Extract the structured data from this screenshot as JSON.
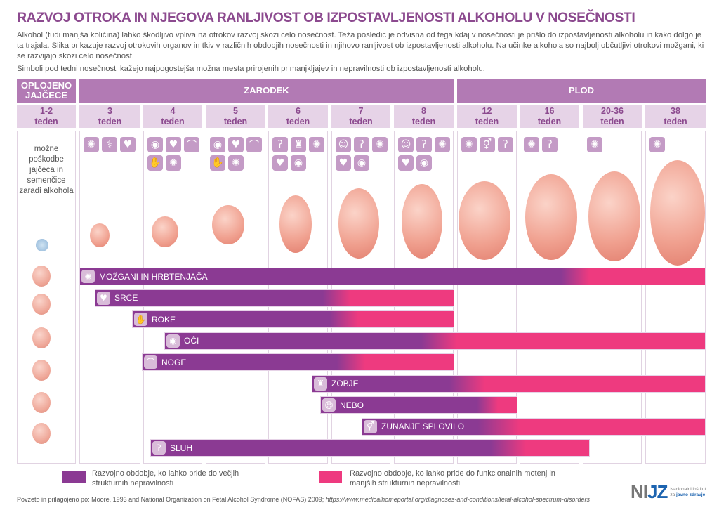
{
  "title": "RAZVOJ OTROKA IN NJEGOVA RANLJIVOST OB IZPOSTAVLJENOSTI ALKOHOLU V NOSEČNOSTI",
  "intro": "Alkohol (tudi manjša količina) lahko škodljivo vpliva na otrokov razvoj skozi celo nosečnost. Teža posledic je odvisna od tega kdaj v nosečnosti je prišlo do izpostavljenosti alkoholu in kako dolgo je ta trajala. Slika prikazuje razvoj otrokovih organov in tkiv v različnih obdobjih nosečnosti in njihovo ranljivost ob izpostavljenosti alkoholu. Na učinke alkohola so najbolj občutljivi otrokovi možgani, ki se razvijajo skozi celo nosečnost.",
  "symbols_note": "Simboli pod tedni nosečnosti kažejo najpogostejša možna mesta prirojenih primanjkljajev in nepravilnosti ob izpostavljenosti alkoholu.",
  "stages": {
    "egg": "OPLOJENO JAJČECE",
    "embryo": "ZARODEK",
    "fetus": "PLOD"
  },
  "week_unit": "teden",
  "weeks": [
    {
      "num": "1-2",
      "icons": []
    },
    {
      "num": "3",
      "icons": [
        "brain",
        "spine",
        "heart"
      ]
    },
    {
      "num": "4",
      "icons": [
        "eye",
        "heart",
        "leg",
        "hand",
        "brain"
      ]
    },
    {
      "num": "5",
      "icons": [
        "eye",
        "heart",
        "leg",
        "hand",
        "brain"
      ]
    },
    {
      "num": "6",
      "icons": [
        "ear",
        "tooth",
        "brain",
        "heart",
        "eye"
      ]
    },
    {
      "num": "7",
      "icons": [
        "palate",
        "ear",
        "brain",
        "heart",
        "eye"
      ]
    },
    {
      "num": "8",
      "icons": [
        "palate",
        "ear",
        "brain",
        "heart",
        "eye"
      ]
    },
    {
      "num": "12",
      "icons": [
        "brain",
        "genitals",
        "ear"
      ]
    },
    {
      "num": "16",
      "icons": [
        "brain",
        "ear"
      ]
    },
    {
      "num": "20-36",
      "icons": [
        "brain"
      ]
    },
    {
      "num": "38",
      "icons": [
        "brain"
      ]
    }
  ],
  "egg_note": "možne poškodbe jajčeca in semenčice zaradi alkohola",
  "organs": [
    {
      "label": "MOŽGANI IN HRBTENJAČA",
      "icon": "brain"
    },
    {
      "label": "SRCE",
      "icon": "heart"
    },
    {
      "label": "ROKE",
      "icon": "hand"
    },
    {
      "label": "OČI",
      "icon": "eye"
    },
    {
      "label": "NOGE",
      "icon": "leg"
    },
    {
      "label": "ZOBJE",
      "icon": "tooth"
    },
    {
      "label": "NEBO",
      "icon": "palate"
    },
    {
      "label": "ZUNANJE SPLOVILO",
      "icon": "genitals"
    },
    {
      "label": "SLUH",
      "icon": "ear"
    }
  ],
  "legend": {
    "major": "Razvojno obdobje, ko lahko pride do večjih strukturnih nepravilnosti",
    "minor": "Razvojno obdobje, ko lahko pride do funkcionalnih motenj in manjših strukturnih nepravilnosti"
  },
  "source_prefix": "Povzeto in prilagojeno po: Moore, 1993 and National Organization on Fetal Alcohol Syndrome (NOFAS) 2009; ",
  "source_url": "https://www.medicalhomeportal.org/diagnoses-and-conditions/fetal-alcohol-spectrum-disorders",
  "logo": {
    "text": "NIJZ",
    "sub": "Nacionalni inštitut za javno zdravje"
  },
  "colors": {
    "major": "#8b3a93",
    "minor": "#ee3a7f",
    "header": "#b27ab4",
    "week_bg": "#e6d3e7",
    "icon": "#c49bc6"
  }
}
